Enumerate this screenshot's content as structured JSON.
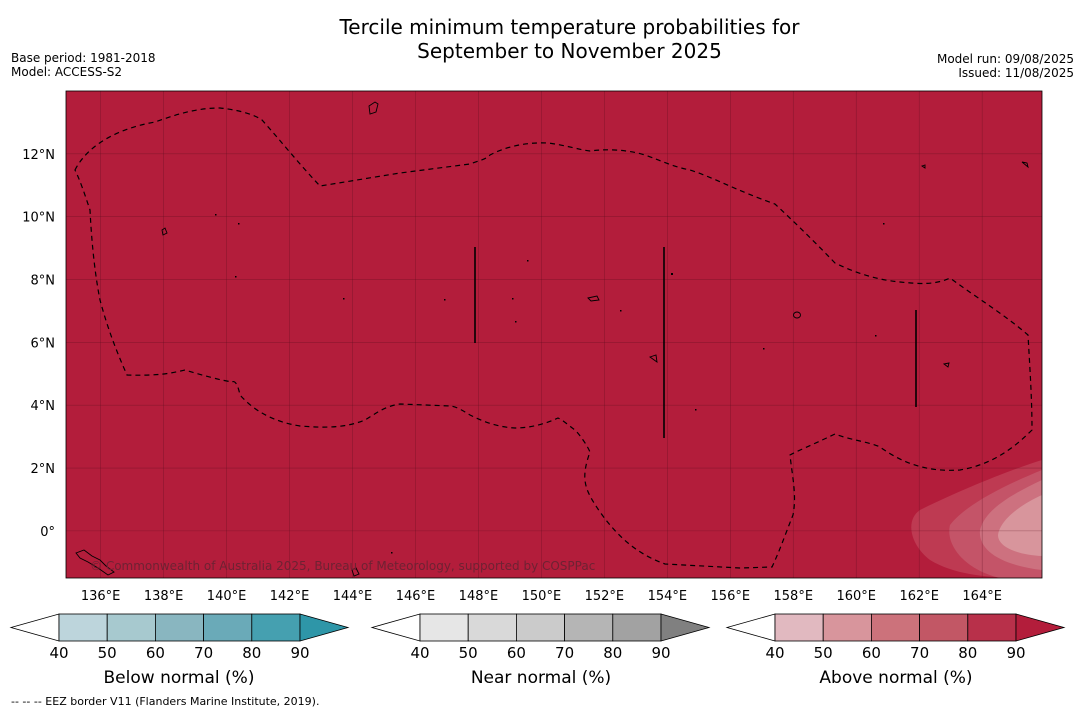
{
  "title_line1": "Tercile minimum temperature probabilities for",
  "title_line2": "September to November 2025",
  "base_period": "Base period: 1981-2018",
  "model": "Model: ACCESS-S2",
  "model_run": "Model run: 09/08/2025",
  "issued": "Issued: 11/08/2025",
  "copyright": "© Commonwealth of Australia 2025, Bureau of Meteorology, supported by COSPPac",
  "footnote": "-- -- -- EEZ border V11 (Flanders Marine Institute, 2019).",
  "map": {
    "lat_labels": [
      "12°N",
      "10°N",
      "8°N",
      "6°N",
      "4°N",
      "2°N",
      "0°"
    ],
    "lat_values": [
      12,
      10,
      8,
      6,
      4,
      2,
      0
    ],
    "lon_labels": [
      "136°E",
      "138°E",
      "140°E",
      "142°E",
      "144°E",
      "146°E",
      "148°E",
      "150°E",
      "152°E",
      "154°E",
      "156°E",
      "158°E",
      "160°E",
      "162°E",
      "164°E"
    ],
    "lon_values": [
      136,
      138,
      140,
      142,
      144,
      146,
      148,
      150,
      152,
      154,
      156,
      158,
      160,
      162,
      164
    ],
    "lon_range": [
      134.9,
      165.9
    ],
    "lat_range": [
      -1.5,
      14.0
    ],
    "background_category": "Above normal",
    "background_class": "90",
    "background_color": "#b31d3b"
  },
  "colorbars": [
    {
      "name": "below",
      "title": "Below normal (%)",
      "tick_labels": [
        "40",
        "50",
        "60",
        "70",
        "80",
        "90"
      ],
      "low_color": "#ffffff",
      "colors": [
        "#bdd5dc",
        "#a7c9cf",
        "#89b6c0",
        "#6aaab8",
        "#45a0b0"
      ],
      "high_color": "#2e96a8"
    },
    {
      "name": "near",
      "title": "Near normal (%)",
      "tick_labels": [
        "40",
        "50",
        "60",
        "70",
        "80",
        "90"
      ],
      "low_color": "#ffffff",
      "colors": [
        "#e6e6e6",
        "#d9d9d9",
        "#cbcbcb",
        "#b5b5b5",
        "#a2a2a2"
      ],
      "high_color": "#808080"
    },
    {
      "name": "above",
      "title": "Above normal (%)",
      "tick_labels": [
        "40",
        "50",
        "60",
        "70",
        "80",
        "90"
      ],
      "low_color": "#ffffff",
      "colors": [
        "#e1b9c0",
        "#d8959c",
        "#cc727b",
        "#c25765",
        "#b8304a"
      ],
      "high_color": "#b31d3b"
    }
  ]
}
